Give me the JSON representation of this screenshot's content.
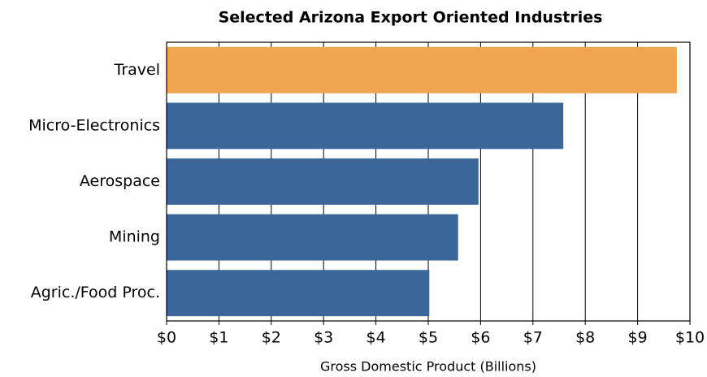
{
  "chart_data": {
    "type": "bar",
    "orientation": "horizontal",
    "title": "Selected Arizona Export Oriented Industries",
    "xlabel": "Gross Domestic Product (Billions)",
    "categories": [
      "Travel",
      "Micro-Electronics",
      "Aerospace",
      "Mining",
      "Agric./Food Proc."
    ],
    "values": [
      9.75,
      7.58,
      5.96,
      5.57,
      5.02
    ],
    "colors": [
      "#f0a550",
      "#3a6699",
      "#3a6699",
      "#3a6699",
      "#3a6699"
    ],
    "xlim": [
      0,
      10
    ],
    "xticks": [
      {
        "value": 0,
        "label": "$0"
      },
      {
        "value": 1,
        "label": "$1"
      },
      {
        "value": 2,
        "label": "$2"
      },
      {
        "value": 3,
        "label": "$3"
      },
      {
        "value": 4,
        "label": "$4"
      },
      {
        "value": 5,
        "label": "$5"
      },
      {
        "value": 6,
        "label": "$6"
      },
      {
        "value": 7,
        "label": "$7"
      },
      {
        "value": 8,
        "label": "$8"
      },
      {
        "value": 9,
        "label": "$9"
      },
      {
        "value": 10,
        "label": "$10"
      }
    ],
    "grid": true
  }
}
